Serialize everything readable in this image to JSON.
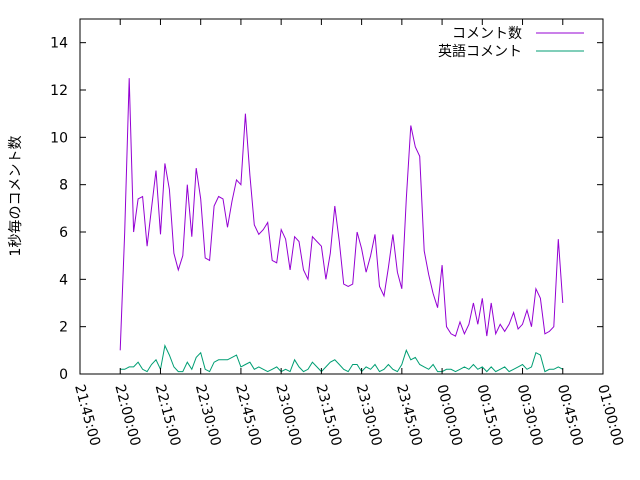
{
  "chart_data": {
    "type": "line",
    "ylabel": "1秒毎のコメント数",
    "xlabel": "",
    "x_ticks": [
      "21:45:00",
      "22:00:00",
      "22:15:00",
      "22:30:00",
      "22:45:00",
      "23:00:00",
      "23:15:00",
      "23:30:00",
      "23:45:00",
      "00:00:00",
      "00:15:00",
      "00:30:00",
      "00:45:00",
      "01:00:00"
    ],
    "xlim": [
      "21:45:00",
      "01:00:00"
    ],
    "y_ticks": [
      0,
      2,
      4,
      6,
      8,
      10,
      12,
      14
    ],
    "ylim": [
      0,
      15
    ],
    "grid": false,
    "legend_position": "top-right",
    "series": [
      {
        "name": "コメント数",
        "color": "#9400d3",
        "points": [
          [
            "22:00:00",
            1.0
          ],
          [
            "22:01:40",
            6.0
          ],
          [
            "22:03:20",
            12.5
          ],
          [
            "22:05:00",
            6.0
          ],
          [
            "22:06:40",
            7.4
          ],
          [
            "22:08:20",
            7.5
          ],
          [
            "22:10:00",
            5.4
          ],
          [
            "22:11:40",
            7.0
          ],
          [
            "22:13:20",
            8.6
          ],
          [
            "22:15:00",
            5.9
          ],
          [
            "22:16:40",
            8.9
          ],
          [
            "22:18:20",
            7.8
          ],
          [
            "22:20:00",
            5.1
          ],
          [
            "22:21:40",
            4.4
          ],
          [
            "22:23:20",
            5.0
          ],
          [
            "22:25:00",
            8.0
          ],
          [
            "22:26:40",
            5.8
          ],
          [
            "22:28:20",
            8.7
          ],
          [
            "22:30:00",
            7.4
          ],
          [
            "22:31:40",
            4.9
          ],
          [
            "22:33:20",
            4.8
          ],
          [
            "22:35:00",
            7.1
          ],
          [
            "22:36:40",
            7.5
          ],
          [
            "22:38:20",
            7.4
          ],
          [
            "22:40:00",
            6.2
          ],
          [
            "22:41:40",
            7.3
          ],
          [
            "22:43:20",
            8.2
          ],
          [
            "22:45:00",
            8.0
          ],
          [
            "22:46:40",
            11.0
          ],
          [
            "22:48:20",
            8.4
          ],
          [
            "22:50:00",
            6.3
          ],
          [
            "22:51:40",
            5.9
          ],
          [
            "22:53:20",
            6.1
          ],
          [
            "22:55:00",
            6.4
          ],
          [
            "22:56:40",
            4.8
          ],
          [
            "22:58:20",
            4.7
          ],
          [
            "23:00:00",
            6.1
          ],
          [
            "23:01:40",
            5.7
          ],
          [
            "23:03:20",
            4.4
          ],
          [
            "23:05:00",
            5.8
          ],
          [
            "23:06:40",
            5.6
          ],
          [
            "23:08:20",
            4.4
          ],
          [
            "23:10:00",
            4.0
          ],
          [
            "23:11:40",
            5.8
          ],
          [
            "23:13:20",
            5.6
          ],
          [
            "23:15:00",
            5.4
          ],
          [
            "23:16:40",
            4.0
          ],
          [
            "23:18:20",
            5.1
          ],
          [
            "23:20:00",
            7.1
          ],
          [
            "23:21:40",
            5.6
          ],
          [
            "23:23:20",
            3.8
          ],
          [
            "23:25:00",
            3.7
          ],
          [
            "23:26:40",
            3.8
          ],
          [
            "23:28:20",
            6.0
          ],
          [
            "23:30:00",
            5.3
          ],
          [
            "23:31:40",
            4.3
          ],
          [
            "23:33:20",
            5.0
          ],
          [
            "23:35:00",
            5.9
          ],
          [
            "23:36:40",
            3.7
          ],
          [
            "23:38:20",
            3.3
          ],
          [
            "23:40:00",
            4.5
          ],
          [
            "23:41:40",
            5.9
          ],
          [
            "23:43:20",
            4.3
          ],
          [
            "23:45:00",
            3.6
          ],
          [
            "23:46:40",
            7.4
          ],
          [
            "23:48:20",
            10.5
          ],
          [
            "23:50:00",
            9.6
          ],
          [
            "23:51:40",
            9.2
          ],
          [
            "23:53:20",
            5.2
          ],
          [
            "23:55:00",
            4.2
          ],
          [
            "23:56:40",
            3.4
          ],
          [
            "23:58:20",
            2.8
          ],
          [
            "00:00:00",
            4.6
          ],
          [
            "00:01:40",
            2.0
          ],
          [
            "00:03:20",
            1.7
          ],
          [
            "00:05:00",
            1.6
          ],
          [
            "00:06:40",
            2.2
          ],
          [
            "00:08:20",
            1.7
          ],
          [
            "00:10:00",
            2.1
          ],
          [
            "00:11:40",
            3.0
          ],
          [
            "00:13:20",
            2.1
          ],
          [
            "00:15:00",
            3.2
          ],
          [
            "00:16:40",
            1.6
          ],
          [
            "00:18:20",
            3.0
          ],
          [
            "00:20:00",
            1.7
          ],
          [
            "00:21:40",
            2.1
          ],
          [
            "00:23:20",
            1.8
          ],
          [
            "00:25:00",
            2.1
          ],
          [
            "00:26:40",
            2.6
          ],
          [
            "00:28:20",
            1.9
          ],
          [
            "00:30:00",
            2.1
          ],
          [
            "00:31:40",
            2.7
          ],
          [
            "00:33:20",
            2.0
          ],
          [
            "00:35:00",
            3.6
          ],
          [
            "00:36:40",
            3.2
          ],
          [
            "00:38:20",
            1.7
          ],
          [
            "00:40:00",
            1.8
          ],
          [
            "00:41:40",
            2.0
          ],
          [
            "00:43:20",
            5.7
          ],
          [
            "00:45:00",
            3.0
          ]
        ]
      },
      {
        "name": "英語コメント",
        "color": "#009e73",
        "points": [
          [
            "22:00:00",
            0.2
          ],
          [
            "22:01:40",
            0.2
          ],
          [
            "22:03:20",
            0.3
          ],
          [
            "22:05:00",
            0.3
          ],
          [
            "22:06:40",
            0.5
          ],
          [
            "22:08:20",
            0.2
          ],
          [
            "22:10:00",
            0.1
          ],
          [
            "22:11:40",
            0.4
          ],
          [
            "22:13:20",
            0.6
          ],
          [
            "22:15:00",
            0.2
          ],
          [
            "22:16:40",
            1.2
          ],
          [
            "22:18:20",
            0.8
          ],
          [
            "22:20:00",
            0.3
          ],
          [
            "22:21:40",
            0.1
          ],
          [
            "22:23:20",
            0.1
          ],
          [
            "22:25:00",
            0.5
          ],
          [
            "22:26:40",
            0.2
          ],
          [
            "22:28:20",
            0.7
          ],
          [
            "22:30:00",
            0.9
          ],
          [
            "22:31:40",
            0.2
          ],
          [
            "22:33:20",
            0.1
          ],
          [
            "22:35:00",
            0.5
          ],
          [
            "22:36:40",
            0.6
          ],
          [
            "22:38:20",
            0.6
          ],
          [
            "22:40:00",
            0.6
          ],
          [
            "22:41:40",
            0.7
          ],
          [
            "22:43:20",
            0.8
          ],
          [
            "22:45:00",
            0.3
          ],
          [
            "22:46:40",
            0.4
          ],
          [
            "22:48:20",
            0.5
          ],
          [
            "22:50:00",
            0.2
          ],
          [
            "22:51:40",
            0.3
          ],
          [
            "22:53:20",
            0.2
          ],
          [
            "22:55:00",
            0.1
          ],
          [
            "22:56:40",
            0.2
          ],
          [
            "22:58:20",
            0.3
          ],
          [
            "23:00:00",
            0.1
          ],
          [
            "23:01:40",
            0.2
          ],
          [
            "23:03:20",
            0.1
          ],
          [
            "23:05:00",
            0.6
          ],
          [
            "23:06:40",
            0.3
          ],
          [
            "23:08:20",
            0.1
          ],
          [
            "23:10:00",
            0.2
          ],
          [
            "23:11:40",
            0.5
          ],
          [
            "23:13:20",
            0.3
          ],
          [
            "23:15:00",
            0.1
          ],
          [
            "23:16:40",
            0.3
          ],
          [
            "23:18:20",
            0.5
          ],
          [
            "23:20:00",
            0.6
          ],
          [
            "23:21:40",
            0.4
          ],
          [
            "23:23:20",
            0.2
          ],
          [
            "23:25:00",
            0.1
          ],
          [
            "23:26:40",
            0.4
          ],
          [
            "23:28:20",
            0.4
          ],
          [
            "23:30:00",
            0.1
          ],
          [
            "23:31:40",
            0.3
          ],
          [
            "23:33:20",
            0.2
          ],
          [
            "23:35:00",
            0.4
          ],
          [
            "23:36:40",
            0.1
          ],
          [
            "23:38:20",
            0.2
          ],
          [
            "23:40:00",
            0.4
          ],
          [
            "23:41:40",
            0.2
          ],
          [
            "23:43:20",
            0.1
          ],
          [
            "23:45:00",
            0.4
          ],
          [
            "23:46:40",
            1.0
          ],
          [
            "23:48:20",
            0.6
          ],
          [
            "23:50:00",
            0.7
          ],
          [
            "23:51:40",
            0.4
          ],
          [
            "23:53:20",
            0.3
          ],
          [
            "23:55:00",
            0.2
          ],
          [
            "23:56:40",
            0.4
          ],
          [
            "23:58:20",
            0.1
          ],
          [
            "00:00:00",
            0.1
          ],
          [
            "00:01:40",
            0.2
          ],
          [
            "00:03:20",
            0.2
          ],
          [
            "00:05:00",
            0.1
          ],
          [
            "00:06:40",
            0.2
          ],
          [
            "00:08:20",
            0.3
          ],
          [
            "00:10:00",
            0.2
          ],
          [
            "00:11:40",
            0.4
          ],
          [
            "00:13:20",
            0.2
          ],
          [
            "00:15:00",
            0.3
          ],
          [
            "00:16:40",
            0.1
          ],
          [
            "00:18:20",
            0.3
          ],
          [
            "00:20:00",
            0.1
          ],
          [
            "00:21:40",
            0.2
          ],
          [
            "00:23:20",
            0.3
          ],
          [
            "00:25:00",
            0.1
          ],
          [
            "00:26:40",
            0.2
          ],
          [
            "00:28:20",
            0.3
          ],
          [
            "00:30:00",
            0.4
          ],
          [
            "00:31:40",
            0.2
          ],
          [
            "00:33:20",
            0.3
          ],
          [
            "00:35:00",
            0.9
          ],
          [
            "00:36:40",
            0.8
          ],
          [
            "00:38:20",
            0.1
          ],
          [
            "00:40:00",
            0.2
          ],
          [
            "00:41:40",
            0.2
          ],
          [
            "00:43:20",
            0.3
          ],
          [
            "00:45:00",
            0.2
          ]
        ]
      }
    ]
  }
}
